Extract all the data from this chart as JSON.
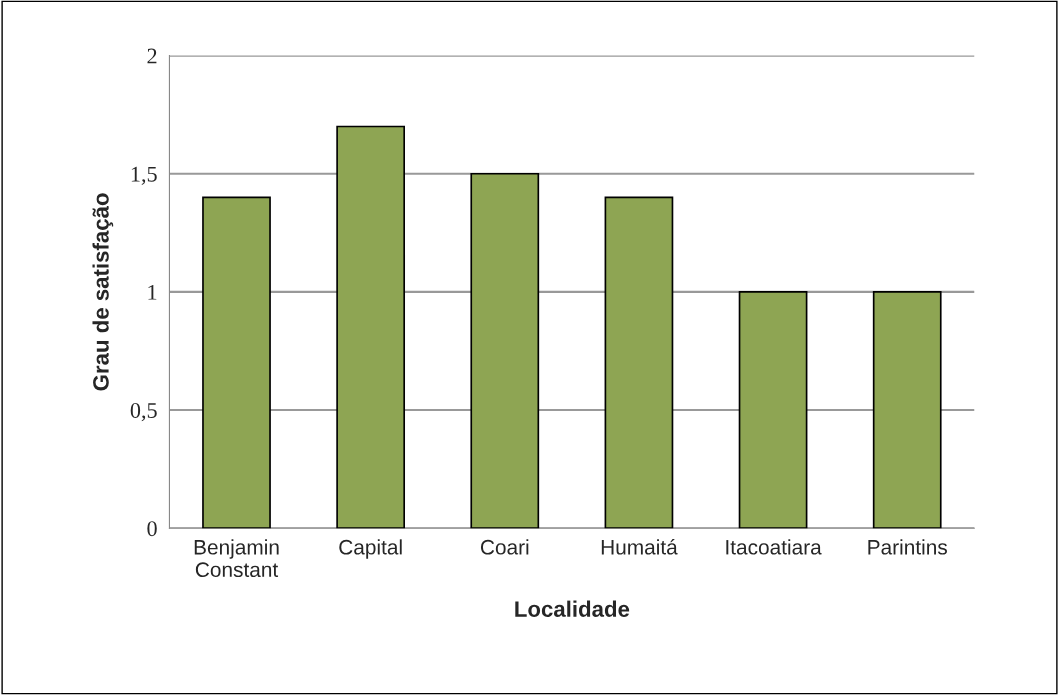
{
  "chart_data": {
    "type": "bar",
    "xlabel": "Localidade",
    "ylabel": "Grau de satisfação",
    "categories": [
      "Benjamin\nConstant",
      "Capital",
      "Coari",
      "Humaitá",
      "Itacoatiara",
      "Parintins"
    ],
    "values": [
      1.4,
      1.7,
      1.5,
      1.4,
      1.0,
      1.0
    ],
    "color": "#8ea553",
    "ylim": [
      0,
      2
    ],
    "yticks": [
      0,
      {
        "value": 0.5,
        "label": "0,5"
      },
      1,
      {
        "value": 1.5,
        "label": "1,5"
      },
      2
    ],
    "grid": "y",
    "legend": false
  }
}
